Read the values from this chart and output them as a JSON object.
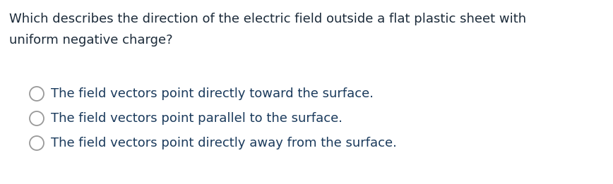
{
  "background_color": "#ffffff",
  "question_line1": "Which describes the direction of the electric field outside a flat plastic sheet with",
  "question_line2": "uniform negative charge?",
  "question_color": "#1c2b3a",
  "question_fontsize": 13.0,
  "options": [
    "The field vectors point directly toward the surface.",
    "The field vectors point parallel to the surface.",
    "The field vectors point directly away from the surface."
  ],
  "option_color": "#1a3a5c",
  "option_fontsize": 13.0,
  "circle_color": "#999999",
  "circle_linewidth": 1.3,
  "fig_width": 8.68,
  "fig_height": 2.61,
  "dpi": 100
}
